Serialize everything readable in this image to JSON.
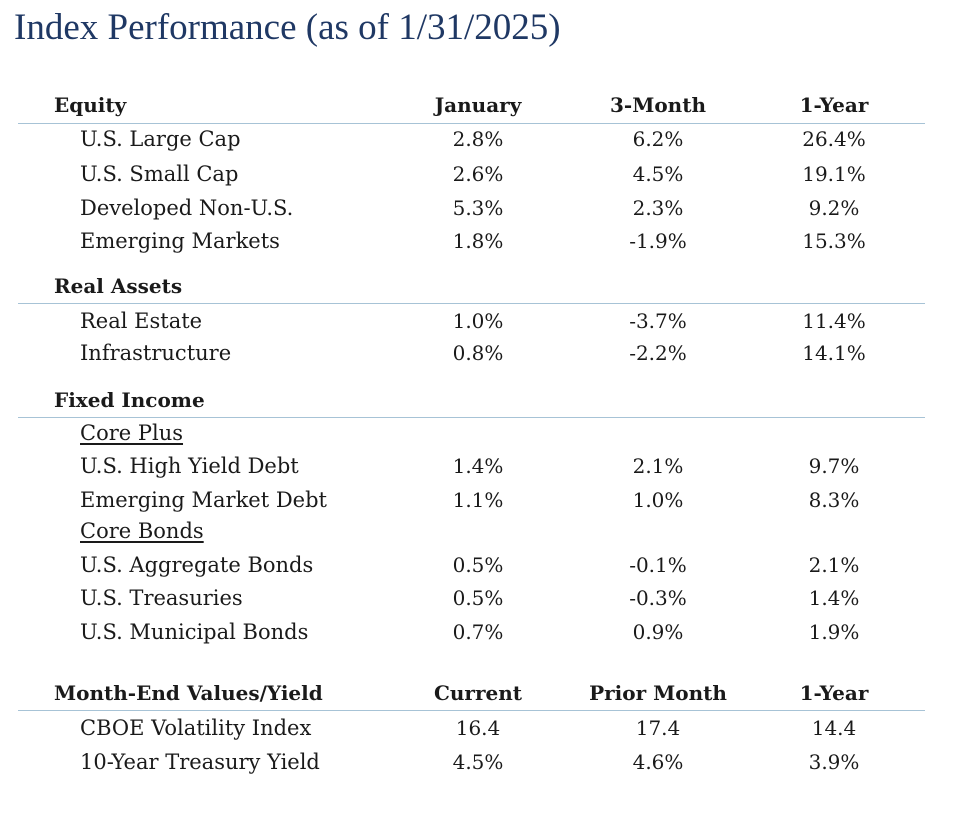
{
  "title": "Index Performance (as of 1/31/2025)",
  "columns": [
    "January",
    "3-Month",
    "1-Year"
  ],
  "equity": {
    "heading": "Equity",
    "rows": [
      {
        "name": "U.S. Large Cap",
        "jan": "2.8%",
        "m3": "6.2%",
        "y1": "26.4%"
      },
      {
        "name": "U.S. Small Cap",
        "jan": "2.6%",
        "m3": "4.5%",
        "y1": "19.1%"
      },
      {
        "name": "Developed Non-U.S.",
        "jan": "5.3%",
        "m3": "2.3%",
        "y1": "9.2%"
      },
      {
        "name": "Emerging Markets",
        "jan": "1.8%",
        "m3": "-1.9%",
        "y1": "15.3%"
      }
    ]
  },
  "real_assets": {
    "heading": "Real Assets",
    "rows": [
      {
        "name": "Real Estate",
        "jan": "1.0%",
        "m3": "-3.7%",
        "y1": "11.4%"
      },
      {
        "name": "Infrastructure",
        "jan": "0.8%",
        "m3": "-2.2%",
        "y1": "14.1%"
      }
    ]
  },
  "fixed_income": {
    "heading": "Fixed Income",
    "core_plus_label": "Core Plus",
    "core_plus": [
      {
        "name": "U.S. High Yield Debt",
        "jan": "1.4%",
        "m3": "2.1%",
        "y1": "9.7%"
      },
      {
        "name": "Emerging Market Debt",
        "jan": "1.1%",
        "m3": "1.0%",
        "y1": "8.3%"
      }
    ],
    "core_bonds_label": "Core Bonds",
    "core_bonds": [
      {
        "name": "U.S. Aggregate Bonds",
        "jan": "0.5%",
        "m3": "-0.1%",
        "y1": "2.1%"
      },
      {
        "name": "U.S. Treasuries",
        "jan": "0.5%",
        "m3": "-0.3%",
        "y1": "1.4%"
      },
      {
        "name": "U.S. Municipal Bonds",
        "jan": "0.7%",
        "m3": "0.9%",
        "y1": "1.9%"
      }
    ]
  },
  "month_end": {
    "heading": "Month-End Values/Yield",
    "columns": [
      "Current",
      "Prior Month",
      "1-Year"
    ],
    "rows": [
      {
        "name": "CBOE Volatility Index",
        "current": "16.4",
        "prior": "17.4",
        "y1": "14.4"
      },
      {
        "name": "10-Year Treasury Yield",
        "current": "4.5%",
        "prior": "4.6%",
        "y1": "3.9%"
      }
    ]
  }
}
